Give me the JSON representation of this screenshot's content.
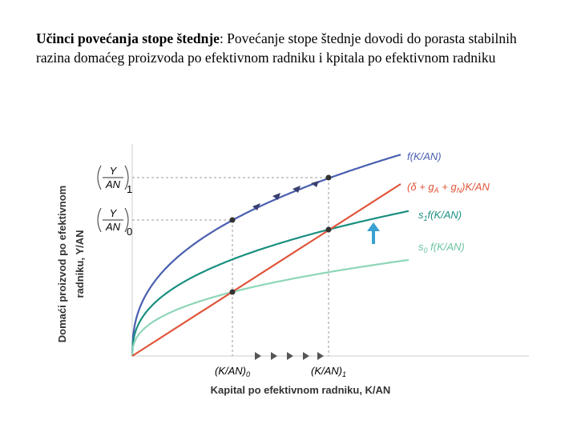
{
  "heading": {
    "title": "Učinci povećanja stope štednje",
    "text": ": Povećanje stope štednje dovodi do porasta stabilnih razina domaćeg proizvoda po efektivnom radniku i kpitala po efektivnom radniku"
  },
  "diagram": {
    "f_label": "f(K/AN)",
    "line_label": [
      "(δ + g",
      "A",
      " + g",
      "N",
      ")K/AN"
    ],
    "s1_label": [
      "s",
      "1",
      "f(K/AN)"
    ],
    "s0_label": [
      "s",
      "0",
      " f(K/AN)"
    ],
    "y1_label": {
      "num": "Y",
      "den": "AN",
      "sub": "1"
    },
    "y0_label": {
      "num": "Y",
      "den": "AN",
      "sub": "0"
    },
    "x0_label": [
      "(K/AN)",
      "0"
    ],
    "x1_label": [
      "(K/AN)",
      "1"
    ],
    "x_axis_title": "Kapital po efektivnom radniku, K/AN",
    "y_axis_title": [
      "Domaći proizvod po efektivnom",
      "radniku, Y/AN"
    ]
  }
}
